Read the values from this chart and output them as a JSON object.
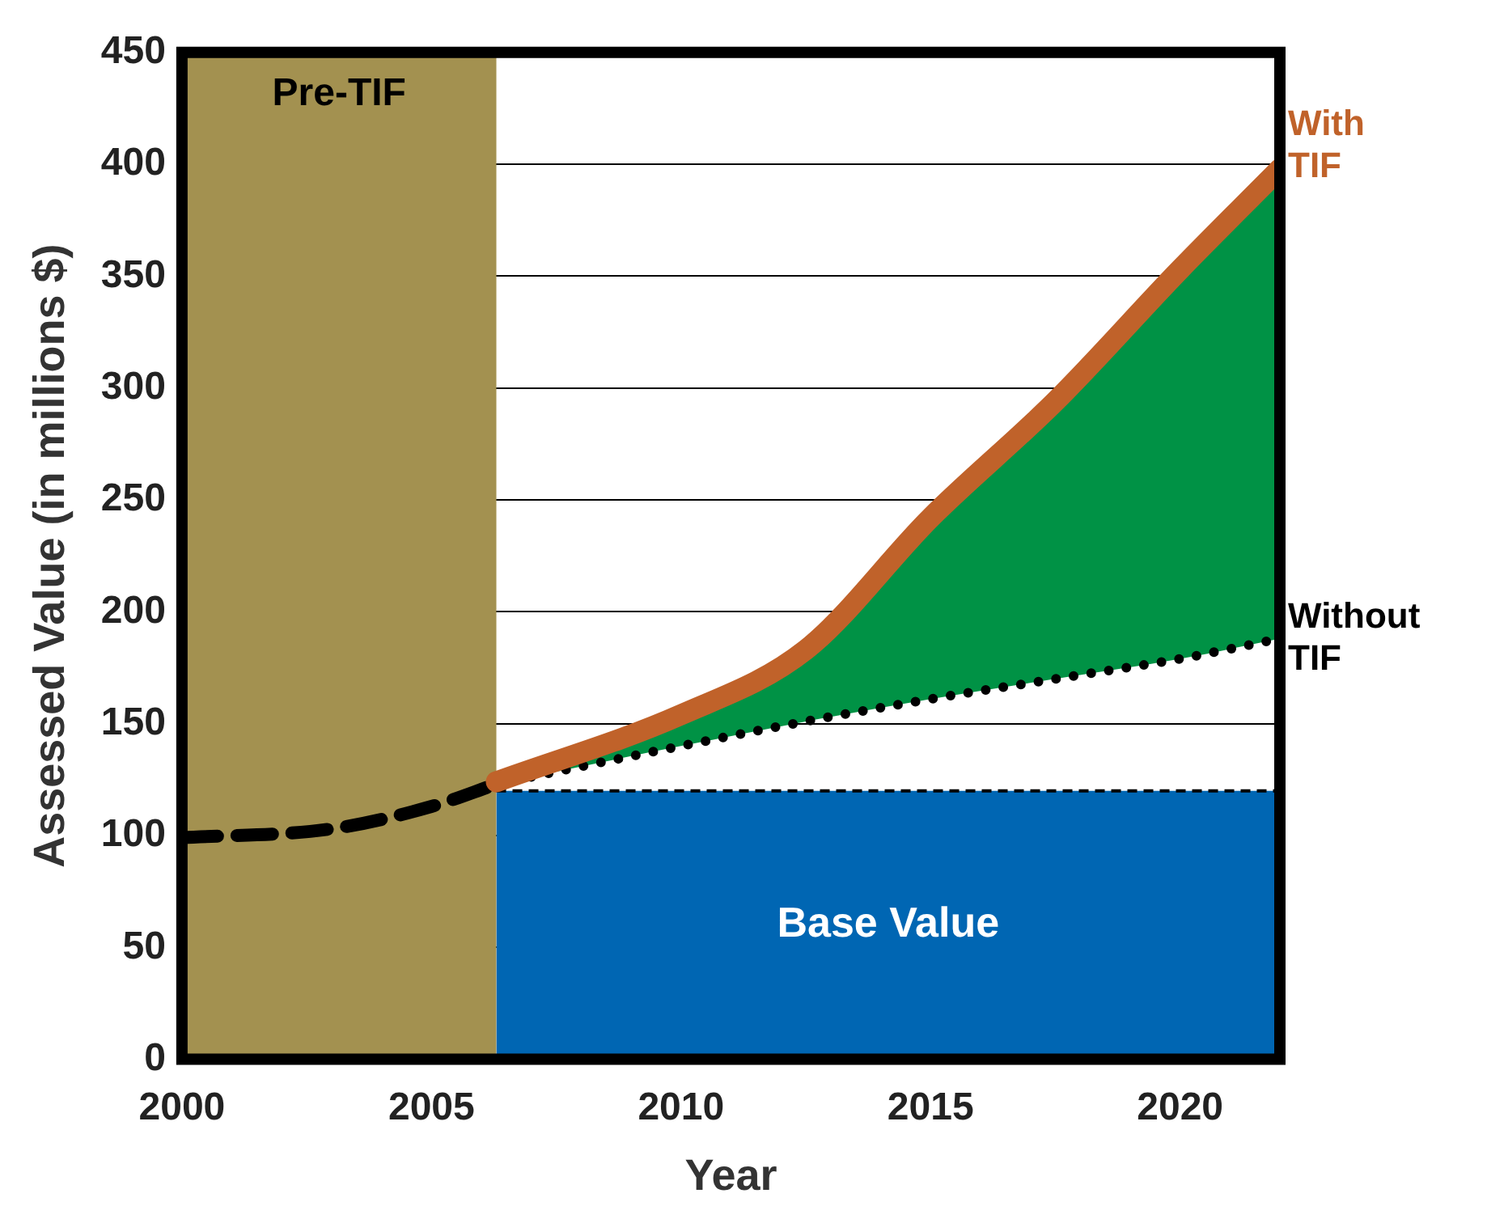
{
  "chart_data": {
    "type": "line",
    "xlabel": "Year",
    "ylabel": "Assessed Value (in millions $)",
    "xlim": [
      2000,
      2022
    ],
    "xticks": [
      2000,
      2005,
      2010,
      2015,
      2020
    ],
    "ylim": [
      0,
      450
    ],
    "yticks": [
      0,
      50,
      100,
      150,
      200,
      250,
      300,
      350,
      400,
      450
    ],
    "grid": "y",
    "legend": false,
    "bands": [
      {
        "axis": "x",
        "from": 2000,
        "to": 2006.3,
        "label": "Pre-TIF",
        "color": "#a39150"
      }
    ],
    "series": [
      {
        "type": "area",
        "name": "Base Value",
        "color": "#0066b3",
        "line_style": "dashed",
        "x": [
          2006.3,
          2022
        ],
        "values": [
          120,
          120
        ]
      },
      {
        "color": "#000000",
        "line_style": "dashed",
        "x": [
          2000,
          2003,
          2005,
          2006.3
        ],
        "values": [
          99,
          103,
          113,
          123
        ]
      },
      {
        "name": "Without TIF",
        "color": "#000000",
        "line_style": "dotted",
        "x": [
          2006.3,
          2010,
          2012.5,
          2015,
          2017.5,
          2020,
          2022
        ],
        "values": [
          123,
          140,
          151,
          161,
          170,
          179,
          188
        ]
      },
      {
        "name": "With TIF",
        "color": "#c0622a",
        "line_style": "solid",
        "x": [
          2006.3,
          2010,
          2012.5,
          2015,
          2017.5,
          2020,
          2022
        ],
        "values": [
          124,
          154,
          183,
          242,
          294,
          353,
          398
        ],
        "lower": [
          123,
          140,
          151,
          161,
          170,
          179,
          188
        ],
        "upper": [
          124,
          154,
          183,
          242,
          294,
          353,
          398
        ]
      }
    ]
  }
}
